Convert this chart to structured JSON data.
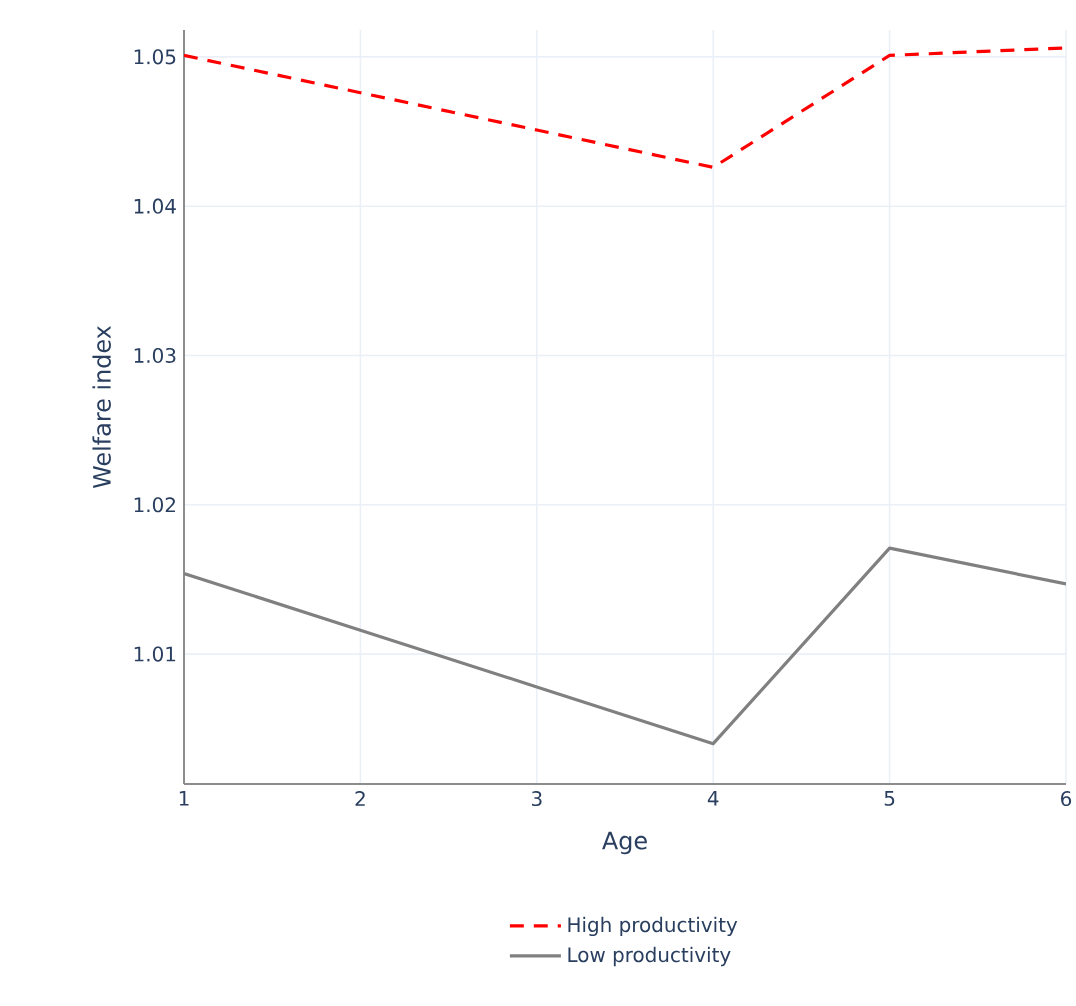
{
  "chart_data": {
    "type": "line",
    "xlabel": "Age",
    "ylabel": "Welfare index",
    "x": [
      1,
      2,
      3,
      4,
      5,
      6
    ],
    "series": [
      {
        "name": "High productivity",
        "color": "#ff0000",
        "line_style": "dashed",
        "values": [
          1.0501,
          1.0476,
          1.0451,
          1.0426,
          1.0501,
          1.0506
        ]
      },
      {
        "name": "Low productivity",
        "color": "#808080",
        "line_style": "solid",
        "values": [
          1.0154,
          1.0116,
          1.0078,
          1.004,
          1.0171,
          1.0147
        ]
      }
    ],
    "xlim": [
      1,
      6
    ],
    "ylim": [
      1.0013,
      1.0518
    ],
    "xticks": [
      1,
      2,
      3,
      4,
      5,
      6
    ],
    "yticks": [
      1.01,
      1.02,
      1.03,
      1.04,
      1.05
    ],
    "grid": true,
    "legend": "bottom",
    "marker": "none"
  }
}
